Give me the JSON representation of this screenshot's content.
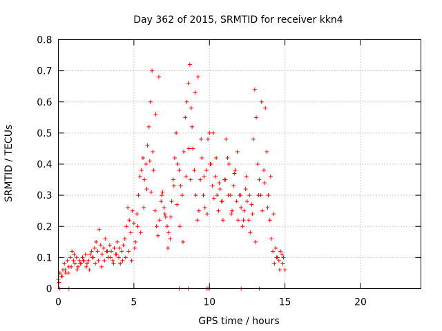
{
  "chart_data": {
    "type": "scatter",
    "title": "Day 362 of 2015, SRMTID for receiver kkn4",
    "xlabel": "GPS time / hours",
    "ylabel": "SRMTID / TECUs",
    "xlim": [
      0,
      24
    ],
    "ylim": [
      0,
      0.8
    ],
    "xticks": [
      "0",
      "5",
      "10",
      "15",
      "20"
    ],
    "xtick_values": [
      0,
      5,
      10,
      15,
      20
    ],
    "yticks": [
      "0",
      "0.1",
      "0.2",
      "0.3",
      "0.4",
      "0.5",
      "0.6",
      "0.7",
      "0.8"
    ],
    "ytick_values": [
      0,
      0.1,
      0.2,
      0.3,
      0.4,
      0.5,
      0.6,
      0.7,
      0.8
    ],
    "grid": true,
    "marker": "+",
    "color": "#ff0000",
    "series": [
      {
        "name": "SRMTID",
        "x": [
          0.0,
          0.1,
          0.2,
          0.3,
          0.4,
          0.5,
          0.6,
          0.7,
          0.8,
          0.9,
          1.0,
          1.1,
          1.2,
          1.3,
          1.4,
          1.5,
          1.6,
          1.7,
          1.8,
          1.9,
          2.0,
          2.1,
          2.2,
          2.3,
          2.4,
          2.5,
          2.6,
          2.7,
          2.8,
          2.9,
          3.0,
          3.1,
          3.2,
          3.3,
          3.4,
          3.5,
          3.6,
          3.7,
          3.8,
          3.9,
          4.0,
          4.1,
          4.2,
          4.3,
          4.4,
          4.5,
          4.6,
          4.7,
          4.8,
          4.9,
          5.0,
          5.1,
          5.2,
          5.3,
          5.4,
          5.5,
          5.6,
          5.7,
          5.8,
          5.9,
          6.0,
          6.1,
          6.2,
          6.3,
          6.4,
          6.5,
          6.6,
          6.7,
          6.8,
          6.9,
          7.0,
          7.1,
          7.2,
          7.3,
          7.4,
          7.5,
          7.6,
          7.7,
          7.8,
          7.9,
          8.0,
          8.1,
          8.2,
          8.3,
          8.4,
          8.5,
          8.6,
          8.7,
          8.8,
          8.9,
          9.0,
          9.1,
          9.2,
          9.3,
          9.4,
          9.5,
          9.6,
          9.7,
          9.8,
          9.9,
          10.0,
          10.1,
          10.2,
          10.3,
          10.4,
          10.5,
          10.6,
          10.7,
          10.8,
          10.9,
          11.0,
          11.1,
          11.2,
          11.3,
          11.4,
          11.5,
          11.6,
          11.7,
          11.8,
          11.9,
          12.0,
          12.1,
          12.2,
          12.3,
          12.4,
          12.5,
          12.6,
          12.7,
          12.8,
          12.9,
          13.0,
          13.1,
          13.2,
          13.3,
          13.4,
          13.5,
          13.6,
          13.7,
          13.8,
          13.9,
          14.0,
          14.1,
          14.2,
          14.3,
          14.4,
          14.5,
          14.6,
          14.7,
          14.8,
          14.9,
          15.0,
          0.05,
          0.25,
          0.45,
          0.65,
          0.85,
          1.05,
          1.25,
          1.45,
          1.65,
          1.85,
          2.05,
          2.25,
          2.45,
          2.65,
          2.85,
          3.05,
          3.25,
          3.45,
          3.65,
          3.85,
          4.05,
          4.25,
          4.45,
          4.65,
          4.85,
          5.05,
          5.25,
          5.45,
          5.65,
          5.85,
          6.05,
          6.15,
          6.25,
          6.45,
          6.65,
          6.85,
          7.05,
          7.25,
          7.45,
          7.65,
          7.85,
          8.05,
          8.25,
          8.45,
          8.65,
          8.75,
          8.85,
          9.05,
          9.25,
          9.45,
          9.65,
          9.85,
          10.05,
          10.25,
          10.45,
          10.65,
          10.85,
          11.05,
          11.25,
          11.45,
          11.65,
          11.85,
          12.05,
          12.25,
          12.45,
          12.65,
          12.85,
          13.05,
          13.25,
          13.45,
          13.65,
          13.85,
          14.05,
          14.25,
          14.45,
          14.65,
          14.85,
          0.1,
          0.7,
          8.0,
          8.6,
          9.8,
          9.9,
          10.0,
          12.1,
          13.3
        ],
        "y": [
          0.03,
          0.05,
          0.04,
          0.06,
          0.08,
          0.05,
          0.09,
          0.07,
          0.1,
          0.12,
          0.09,
          0.08,
          0.1,
          0.07,
          0.09,
          0.08,
          0.1,
          0.09,
          0.11,
          0.08,
          0.09,
          0.11,
          0.12,
          0.1,
          0.13,
          0.15,
          0.12,
          0.19,
          0.14,
          0.11,
          0.13,
          0.16,
          0.12,
          0.1,
          0.14,
          0.12,
          0.09,
          0.13,
          0.11,
          0.15,
          0.1,
          0.08,
          0.12,
          0.14,
          0.16,
          0.2,
          0.26,
          0.22,
          0.18,
          0.25,
          0.21,
          0.15,
          0.24,
          0.3,
          0.36,
          0.38,
          0.42,
          0.35,
          0.4,
          0.46,
          0.52,
          0.6,
          0.7,
          0.38,
          0.25,
          0.2,
          0.17,
          0.22,
          0.28,
          0.31,
          0.26,
          0.23,
          0.2,
          0.18,
          0.16,
          0.28,
          0.35,
          0.42,
          0.5,
          0.4,
          0.38,
          0.33,
          0.3,
          0.44,
          0.55,
          0.6,
          0.66,
          0.72,
          0.58,
          0.45,
          0.38,
          0.3,
          0.22,
          0.25,
          0.35,
          0.42,
          0.3,
          0.26,
          0.38,
          0.48,
          0.5,
          0.4,
          0.33,
          0.29,
          0.36,
          0.3,
          0.25,
          0.32,
          0.28,
          0.22,
          0.35,
          0.48,
          0.42,
          0.4,
          0.3,
          0.25,
          0.33,
          0.38,
          0.28,
          0.22,
          0.3,
          0.26,
          0.2,
          0.25,
          0.32,
          0.28,
          0.22,
          0.18,
          0.27,
          0.48,
          0.64,
          0.55,
          0.4,
          0.35,
          0.3,
          0.25,
          0.38,
          0.58,
          0.44,
          0.3,
          0.22,
          0.16,
          0.12,
          0.08,
          0.13,
          0.1,
          0.09,
          0.12,
          0.11,
          0.1,
          0.06,
          0.02,
          0.04,
          0.06,
          0.05,
          0.07,
          0.11,
          0.06,
          0.08,
          0.09,
          0.07,
          0.06,
          0.1,
          0.08,
          0.09,
          0.07,
          0.09,
          0.12,
          0.1,
          0.08,
          0.11,
          0.13,
          0.09,
          0.1,
          0.12,
          0.09,
          0.13,
          0.2,
          0.18,
          0.26,
          0.32,
          0.41,
          0.31,
          0.44,
          0.56,
          0.68,
          0.3,
          0.24,
          0.13,
          0.23,
          0.33,
          0.27,
          0.2,
          0.15,
          0.36,
          0.45,
          0.35,
          0.52,
          0.63,
          0.68,
          0.48,
          0.36,
          0.24,
          0.4,
          0.5,
          0.42,
          0.34,
          0.28,
          0.35,
          0.3,
          0.24,
          0.37,
          0.44,
          0.3,
          0.22,
          0.36,
          0.3,
          0.24,
          0.15,
          0.3,
          0.6,
          0.34,
          0.26,
          0.36,
          0.24,
          0.1,
          0.06,
          0.08,
          0.0,
          0.0,
          0.0,
          0.0,
          0.0,
          0.0,
          0.0,
          0.0,
          0.0
        ]
      }
    ]
  }
}
